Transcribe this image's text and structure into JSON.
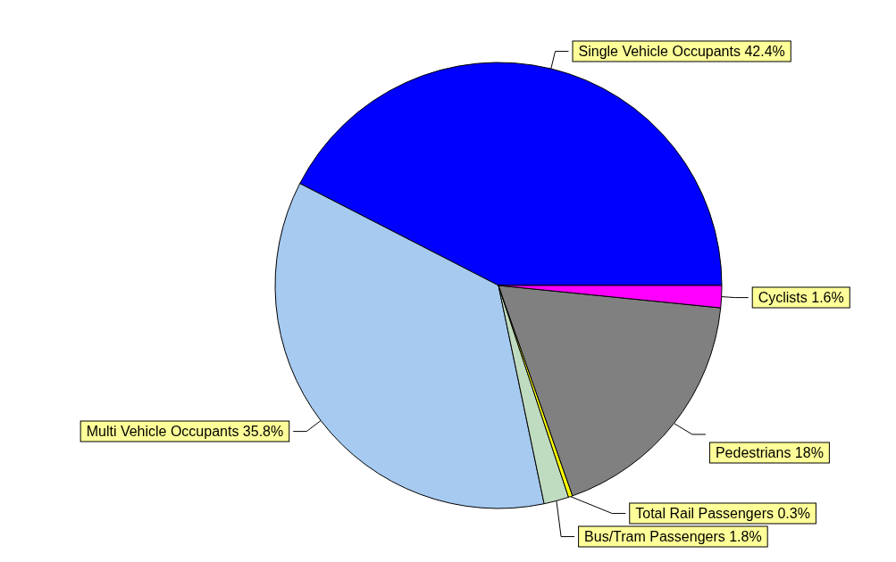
{
  "chart_data": {
    "type": "pie",
    "categories": [
      "Single Vehicle Occupants",
      "Multi Vehicle Occupants",
      "Bus/Tram Passengers",
      "Total Rail Passengers",
      "Pedestrians",
      "Cyclists"
    ],
    "values": [
      42.4,
      35.8,
      1.8,
      0.3,
      18,
      1.6
    ],
    "value_labels": [
      "42.4%",
      "35.8%",
      "1.8%",
      "0.3%",
      "18%",
      "1.6%"
    ],
    "colors": [
      "#0000ff",
      "#a6caf0",
      "#c0dcc0",
      "#ffff00",
      "#808080",
      "#ff00ff"
    ],
    "legend": false
  }
}
